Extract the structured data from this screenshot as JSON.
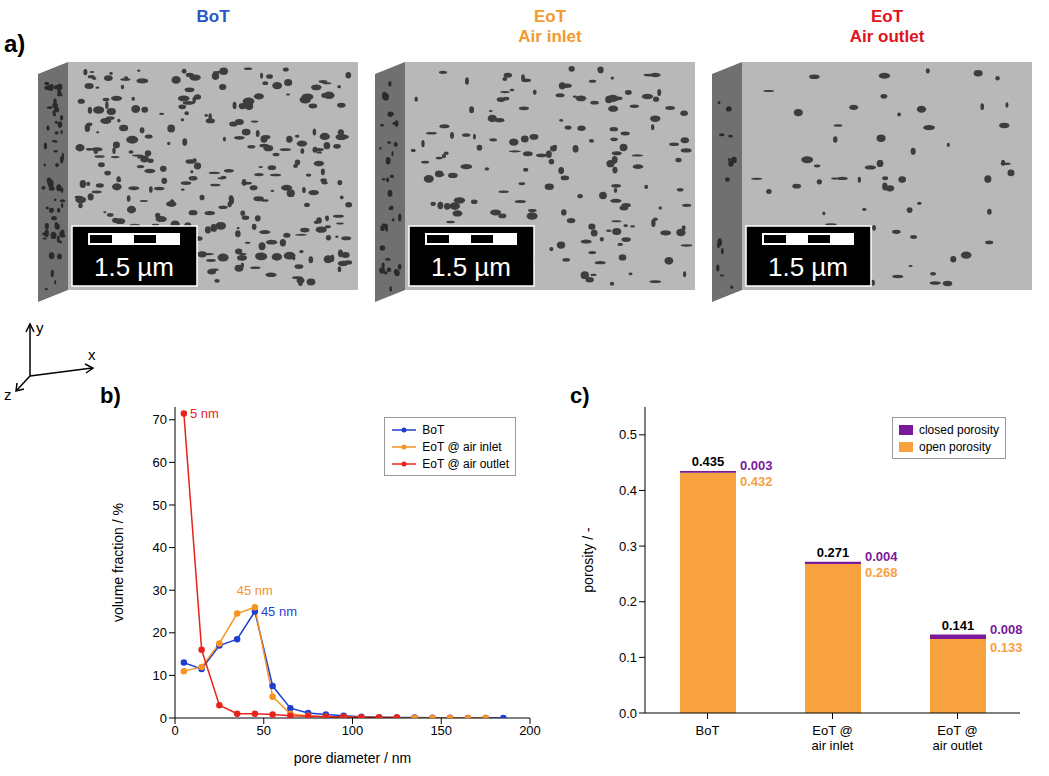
{
  "panel_a": {
    "panel_label": "a)",
    "images": [
      {
        "title": [
          "BoT"
        ],
        "color": "#2b55c6",
        "scale_bar": "1.5 µm"
      },
      {
        "title": [
          "EoT",
          "Air inlet"
        ],
        "color": "#f39a2f",
        "scale_bar": "1.5 µm"
      },
      {
        "title": [
          "EoT",
          "Air outlet"
        ],
        "color": "#e3121b",
        "scale_bar": "1.5 µm"
      }
    ],
    "axes": [
      "y",
      "x",
      "z"
    ]
  },
  "chart_data": [
    {
      "panel_label": "b)",
      "type": "line",
      "x_label": "pore diameter / nm",
      "y_label": "volume fraction / %",
      "xlim": [
        0,
        200
      ],
      "xticks": [
        0,
        50,
        100,
        150,
        200
      ],
      "ylim": [
        0,
        73
      ],
      "yticks": [
        0,
        10,
        20,
        30,
        40,
        50,
        60,
        70
      ],
      "legend": "top right",
      "marker": "circle",
      "series": [
        {
          "name": "BoT",
          "color": "#1f3fd0",
          "x": [
            5,
            15,
            25,
            35,
            45,
            55,
            65,
            75,
            85,
            95,
            105,
            115,
            125,
            135,
            145,
            155,
            165,
            175,
            185
          ],
          "values": [
            13,
            11.5,
            17,
            18.5,
            25,
            7.5,
            2.3,
            1.2,
            0.8,
            0.5,
            0.3,
            0.2,
            0.1,
            0.1,
            0.05,
            0.05,
            0,
            0,
            0
          ]
        },
        {
          "name": "EoT @ air inlet",
          "color": "#f7931e",
          "x": [
            5,
            15,
            25,
            35,
            45,
            55,
            65,
            75,
            85,
            95,
            105,
            115,
            125,
            135,
            145,
            155,
            165,
            175
          ],
          "values": [
            11,
            12,
            17.5,
            24.5,
            26,
            5,
            1,
            0.5,
            0.3,
            0.2,
            0.1,
            0.1,
            0,
            0,
            0,
            0,
            0,
            0
          ]
        },
        {
          "name": "EoT @ air outlet",
          "color": "#e8231c",
          "x": [
            5,
            15,
            25,
            35,
            45,
            55,
            65,
            75,
            85,
            95,
            105,
            115,
            125
          ],
          "values": [
            71.5,
            16,
            3,
            1,
            1,
            0.8,
            0.5,
            0.4,
            0.3,
            0.3,
            0.2,
            0.1,
            0.1
          ]
        }
      ],
      "annotations": [
        {
          "text": "5 nm",
          "x": 5,
          "y": 71.5,
          "color": "#e8231c"
        },
        {
          "text": "45 nm",
          "x": 45,
          "y": 26,
          "color": "#f7931e"
        },
        {
          "text": "45 nm",
          "x": 45,
          "y": 25,
          "color": "#1f3fd0"
        }
      ]
    },
    {
      "panel_label": "c)",
      "type": "bar",
      "stacked": true,
      "data_labels": true,
      "y_label": "porosity / -",
      "categories": [
        "BoT",
        "EoT @ air inlet",
        "EoT @ air outlet"
      ],
      "ylim": [
        0,
        0.55
      ],
      "yticks": [
        {
          "value": 0,
          "label": "0.0"
        },
        {
          "value": 0.1,
          "label": "0.1"
        },
        {
          "value": 0.2,
          "label": "0.2"
        },
        {
          "value": 0.3,
          "label": "0.3"
        },
        {
          "value": 0.4,
          "label": "0.4"
        },
        {
          "value": 0.5,
          "label": "0.5"
        }
      ],
      "legend": "top right",
      "series": [
        {
          "name": "open porosity",
          "color": "#f7a13f",
          "values": [
            0.432,
            0.268,
            0.133
          ]
        },
        {
          "name": "closed porosity",
          "color": "#7a1a9a",
          "values": [
            0.003,
            0.004,
            0.008
          ]
        }
      ],
      "totals": [
        0.435,
        0.271,
        0.141
      ]
    }
  ]
}
